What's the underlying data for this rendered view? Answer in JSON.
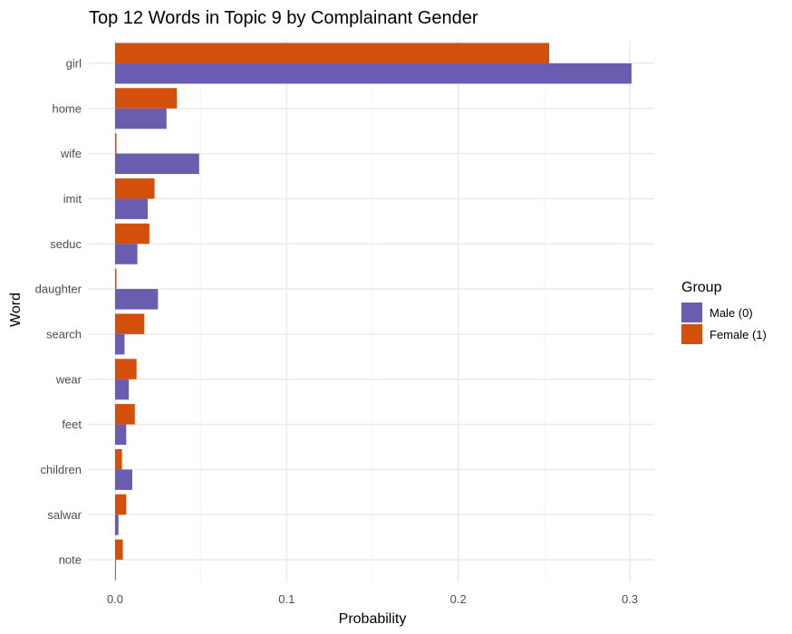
{
  "chart_data": {
    "type": "bar",
    "orientation": "horizontal",
    "title": "Top 12 Words in Topic 9 by Complainant Gender",
    "xlabel": "Probability",
    "ylabel": "Word",
    "xlim": [
      0,
      0.315
    ],
    "x_ticks": [
      "0.0",
      "0.1",
      "0.2",
      "0.3"
    ],
    "grid": true,
    "legend": {
      "title": "Group",
      "position": "right"
    },
    "categories": [
      "girl",
      "home",
      "wife",
      "imit",
      "seduc",
      "daughter",
      "search",
      "wear",
      "feet",
      "children",
      "salwar",
      "note"
    ],
    "series": [
      {
        "name": "Male (0)",
        "color": "#6a5db0",
        "values": [
          0.301,
          0.03,
          0.049,
          0.019,
          0.013,
          0.025,
          0.0055,
          0.008,
          0.0065,
          0.01,
          0.002,
          0.0005
        ]
      },
      {
        "name": "Female (1)",
        "color": "#d24f0c",
        "values": [
          0.253,
          0.036,
          0.0008,
          0.023,
          0.02,
          0.0008,
          0.017,
          0.0125,
          0.0115,
          0.004,
          0.0065,
          0.0045
        ]
      }
    ]
  }
}
